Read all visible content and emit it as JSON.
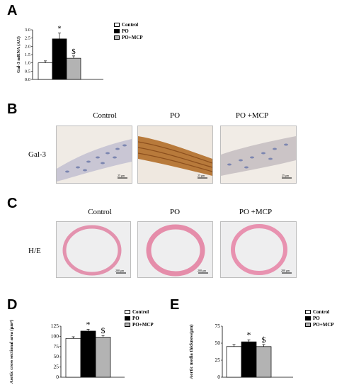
{
  "panels": {
    "A": "A",
    "B": "B",
    "C": "C",
    "D": "D",
    "E": "E"
  },
  "legend": {
    "control": "Control",
    "po": "PO",
    "po_mcp": "PO+MCP"
  },
  "colors": {
    "control": "#ffffff",
    "po": "#000000",
    "po_mcp": "#b3b3b3",
    "stain_bg": "#f3ede6",
    "he_ring": "#e48fae"
  },
  "panel_b": {
    "columns": [
      "Control",
      "PO",
      "PO +MCP"
    ],
    "row_label": "Gal-3",
    "scalebar": "25 μm"
  },
  "panel_c": {
    "columns": [
      "Control",
      "PO",
      "PO +MCP"
    ],
    "row_label": "H/E",
    "scalebar": "200 μm"
  },
  "chart_data": [
    {
      "type": "bar",
      "panel": "A",
      "ylabel": "Gal-3 mRNA (AU)",
      "ylim": [
        0,
        3.0
      ],
      "yticks": [
        "0.0",
        "0.5",
        "1.0",
        "1.5",
        "2.0",
        "2.5",
        "3.0"
      ],
      "categories": [
        "Control",
        "PO",
        "PO+MCP"
      ],
      "values": [
        1.0,
        2.45,
        1.28
      ],
      "errors": [
        0.12,
        0.35,
        0.14
      ],
      "annotations": [
        "",
        "*",
        "$"
      ]
    },
    {
      "type": "bar",
      "panel": "D",
      "ylabel": "Aortic cross sectional area (μm²)",
      "ylim": [
        0,
        125
      ],
      "yticks": [
        "0",
        "25",
        "50",
        "75",
        "100",
        "125"
      ],
      "categories": [
        "Control",
        "PO",
        "PO+MCP"
      ],
      "values": [
        95,
        113,
        98
      ],
      "errors": [
        4,
        4,
        4
      ],
      "annotations": [
        "",
        "*",
        "$"
      ]
    },
    {
      "type": "bar",
      "panel": "E",
      "ylabel": "Aortic media thickness(μm)",
      "ylim": [
        0,
        75
      ],
      "yticks": [
        "0",
        "25",
        "50",
        "75"
      ],
      "categories": [
        "Control",
        "PO",
        "PO+MCP"
      ],
      "values": [
        45,
        52,
        45
      ],
      "errors": [
        3,
        3,
        3
      ],
      "annotations": [
        "",
        "*",
        "$"
      ]
    }
  ]
}
